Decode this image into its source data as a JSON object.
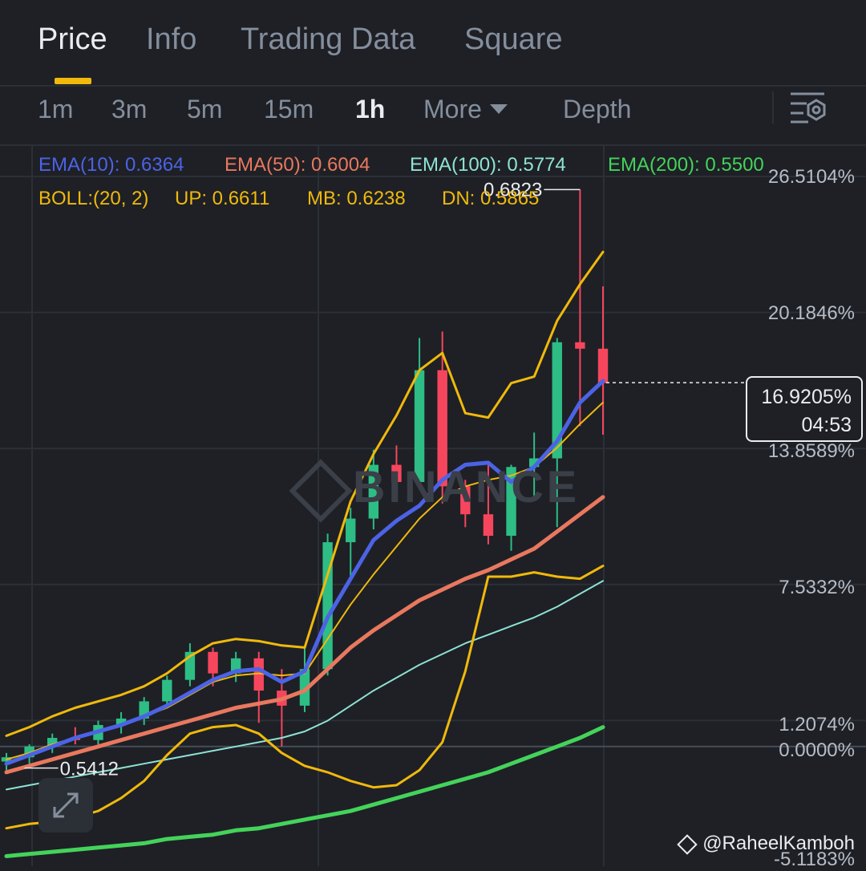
{
  "tabs": [
    {
      "label": "Price",
      "active": true
    },
    {
      "label": "Info",
      "active": false
    },
    {
      "label": "Trading Data",
      "active": false
    },
    {
      "label": "Square",
      "active": false
    }
  ],
  "intervals": [
    {
      "label": "1m",
      "active": false
    },
    {
      "label": "3m",
      "active": false
    },
    {
      "label": "5m",
      "active": false
    },
    {
      "label": "15m",
      "active": false
    },
    {
      "label": "1h",
      "active": true
    },
    {
      "label": "More",
      "active": false
    },
    {
      "label": "Depth",
      "active": false
    }
  ],
  "icons": {
    "more_dropdown": "chevron-down-icon",
    "settings": "chart-settings-icon",
    "zoom": "expand-arrows-icon",
    "brand": "binance-diamond-icon"
  },
  "indicators": {
    "ema10": "EMA(10): 0.6364",
    "ema50": "EMA(50): 0.6004",
    "ema100": "EMA(100): 0.5774",
    "ema200": "EMA(200): 0.5500",
    "boll": "BOLL:(20, 2)",
    "up": "UP: 0.6611",
    "mb": "MB: 0.6238",
    "dn": "DN: 0.5865"
  },
  "colors": {
    "ema10": "#4c63e6",
    "ema50": "#e9785e",
    "ema100": "#8ee3d4",
    "ema200": "#44d35a",
    "boll": "#f0b90b",
    "up_candle": "#2ebd85",
    "down_candle": "#f6465d",
    "background": "#1e2026"
  },
  "y_axis_labels": [
    "26.5104%",
    "20.1846%",
    "13.8589%",
    "7.5332%",
    "1.2074%",
    "0.0000%",
    "-5.1183%"
  ],
  "current": {
    "percent": "16.9205%",
    "countdown": "04:53"
  },
  "annotations": {
    "high": "0.6823",
    "low": "0.5412"
  },
  "brand_watermark": "BINANCE",
  "credit": "@RaheelKamboh",
  "chart_data": {
    "type": "candlestick",
    "y_unit": "percent change",
    "ylim": [
      -5.1183,
      26.5104
    ],
    "series": [
      {
        "name": "EMA(10)",
        "values": [
          -0.8,
          -0.4,
          0.0,
          0.4,
          0.7,
          1.0,
          1.4,
          1.9,
          2.5,
          3.1,
          3.5,
          3.6,
          3.0,
          3.5,
          6.0,
          7.8,
          9.6,
          10.5,
          11.2,
          12.4,
          13.1,
          13.2,
          12.3,
          13.0,
          14.2,
          16.0,
          17.0
        ]
      },
      {
        "name": "EMA(50)",
        "values": [
          -1.2,
          -0.9,
          -0.6,
          -0.3,
          0.0,
          0.3,
          0.6,
          0.9,
          1.2,
          1.5,
          1.8,
          2.0,
          2.2,
          2.6,
          3.6,
          4.6,
          5.4,
          6.1,
          6.8,
          7.3,
          7.8,
          8.2,
          8.7,
          9.2,
          10.0,
          10.8,
          11.6
        ]
      },
      {
        "name": "EMA(100)",
        "values": [
          -2.0,
          -1.8,
          -1.6,
          -1.4,
          -1.2,
          -1.0,
          -0.8,
          -0.6,
          -0.4,
          -0.2,
          0.0,
          0.2,
          0.4,
          0.7,
          1.2,
          1.9,
          2.6,
          3.2,
          3.8,
          4.3,
          4.8,
          5.2,
          5.6,
          6.0,
          6.5,
          7.1,
          7.7
        ]
      },
      {
        "name": "EMA(200)",
        "values": [
          -5.1,
          -5.0,
          -4.9,
          -4.8,
          -4.7,
          -4.6,
          -4.5,
          -4.3,
          -4.2,
          -4.1,
          -3.9,
          -3.8,
          -3.6,
          -3.4,
          -3.2,
          -3.0,
          -2.7,
          -2.4,
          -2.1,
          -1.8,
          -1.5,
          -1.2,
          -0.8,
          -0.4,
          0.0,
          0.4,
          0.9
        ]
      },
      {
        "name": "UP",
        "values": [
          0.5,
          0.9,
          1.4,
          1.8,
          2.1,
          2.4,
          2.8,
          3.4,
          4.2,
          4.8,
          5.0,
          4.9,
          4.7,
          4.6,
          8.0,
          11.4,
          13.6,
          15.4,
          17.5,
          18.3,
          15.5,
          15.3,
          16.9,
          17.2,
          19.8,
          21.5,
          23.0
        ]
      },
      {
        "name": "MB",
        "values": [
          -0.6,
          -0.3,
          0.1,
          0.4,
          0.7,
          1.0,
          1.4,
          1.8,
          2.4,
          3.0,
          3.3,
          3.4,
          3.3,
          3.4,
          5.0,
          6.6,
          8.0,
          9.3,
          10.6,
          11.6,
          12.1,
          12.4,
          12.6,
          13.0,
          13.9,
          15.0,
          16.0
        ]
      },
      {
        "name": "DN",
        "values": [
          -3.8,
          -3.6,
          -3.5,
          -3.3,
          -3.0,
          -2.4,
          -1.6,
          -0.4,
          0.6,
          0.9,
          1.0,
          0.6,
          -0.3,
          -0.9,
          -1.2,
          -1.6,
          -1.9,
          -1.8,
          -1.1,
          0.2,
          3.5,
          7.9,
          7.9,
          8.1,
          7.9,
          7.8,
          8.4
        ]
      }
    ],
    "candles": [
      {
        "o": -0.7,
        "h": -0.3,
        "l": -1.1,
        "c": -0.5
      },
      {
        "o": -0.5,
        "h": 0.1,
        "l": -0.8,
        "c": 0.0
      },
      {
        "o": 0.0,
        "h": 0.6,
        "l": -0.3,
        "c": 0.4
      },
      {
        "o": 0.4,
        "h": 0.9,
        "l": 0.1,
        "c": 0.3
      },
      {
        "o": 0.3,
        "h": 1.2,
        "l": 0.1,
        "c": 1.0
      },
      {
        "o": 1.0,
        "h": 1.6,
        "l": 0.6,
        "c": 1.3
      },
      {
        "o": 1.3,
        "h": 2.3,
        "l": 1.0,
        "c": 2.1
      },
      {
        "o": 2.1,
        "h": 3.3,
        "l": 1.8,
        "c": 3.1
      },
      {
        "o": 3.1,
        "h": 4.8,
        "l": 2.8,
        "c": 4.4
      },
      {
        "o": 4.4,
        "h": 4.6,
        "l": 2.8,
        "c": 3.4
      },
      {
        "o": 3.4,
        "h": 4.4,
        "l": 3.0,
        "c": 4.1
      },
      {
        "o": 4.1,
        "h": 4.4,
        "l": 1.1,
        "c": 2.6
      },
      {
        "o": 2.6,
        "h": 3.6,
        "l": 0.0,
        "c": 1.9
      },
      {
        "o": 1.9,
        "h": 4.6,
        "l": 1.6,
        "c": 3.6
      },
      {
        "o": 3.6,
        "h": 9.9,
        "l": 3.3,
        "c": 9.5
      },
      {
        "o": 9.5,
        "h": 11.1,
        "l": 7.9,
        "c": 10.6
      },
      {
        "o": 10.6,
        "h": 13.8,
        "l": 10.1,
        "c": 13.1
      },
      {
        "o": 13.1,
        "h": 14.0,
        "l": 11.5,
        "c": 12.3
      },
      {
        "o": 12.3,
        "h": 19.0,
        "l": 12.0,
        "c": 17.5
      },
      {
        "o": 17.5,
        "h": 19.3,
        "l": 11.3,
        "c": 12.1
      },
      {
        "o": 12.1,
        "h": 12.4,
        "l": 10.2,
        "c": 10.8
      },
      {
        "o": 10.8,
        "h": 13.1,
        "l": 9.4,
        "c": 9.8
      },
      {
        "o": 9.8,
        "h": 13.1,
        "l": 9.1,
        "c": 13.0
      },
      {
        "o": 13.0,
        "h": 14.6,
        "l": 11.6,
        "c": 13.4
      },
      {
        "o": 13.4,
        "h": 19.0,
        "l": 10.2,
        "c": 18.8
      },
      {
        "o": 18.8,
        "h": 25.9,
        "l": 14.9,
        "c": 18.5
      },
      {
        "o": 18.5,
        "h": 21.4,
        "l": 14.5,
        "c": 16.9
      }
    ],
    "current_value": 16.9205,
    "high_label": "0.6823",
    "low_label": "0.5412"
  }
}
